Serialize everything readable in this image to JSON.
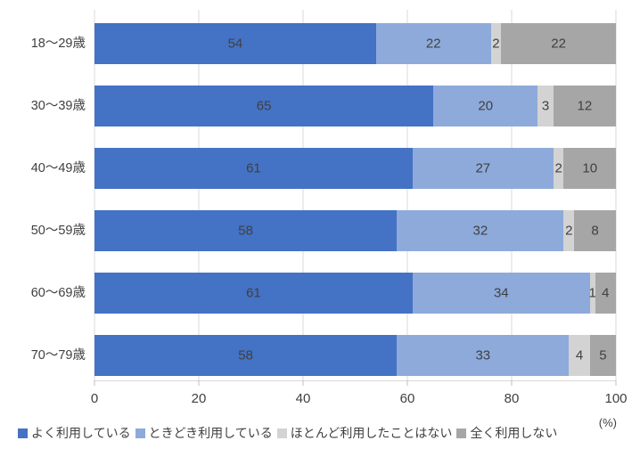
{
  "page": {
    "background": "#FFFFFF"
  },
  "chart_data": {
    "type": "bar",
    "variant": "horizontal-stacked",
    "title": "",
    "categories": [
      "18〜29歳",
      "30〜39歳",
      "40〜49歳",
      "50〜59歳",
      "60〜69歳",
      "70〜79歳"
    ],
    "series": [
      {
        "name": "よく利用している",
        "color": "#4472C4",
        "values": [
          54,
          65,
          61,
          58,
          61,
          58
        ]
      },
      {
        "name": "ときどき利用している",
        "color": "#8EAADB",
        "values": [
          22,
          20,
          27,
          32,
          34,
          33
        ]
      },
      {
        "name": "ほとんど利用したことはない",
        "color": "#D3D3D3",
        "values": [
          2,
          3,
          2,
          2,
          1,
          4
        ]
      },
      {
        "name": "全く利用しない",
        "color": "#A6A6A6",
        "values": [
          22,
          12,
          10,
          8,
          4,
          5
        ]
      }
    ],
    "xlim": [
      0,
      100
    ],
    "x_ticks": [
      0,
      20,
      40,
      60,
      80,
      100
    ],
    "axis_unit_label": "(%)",
    "grid": true,
    "gridline_color": "#D9D9D9",
    "tick_color": "#BFBFBF",
    "text_color": "#404040",
    "legend_position": "bottom"
  }
}
